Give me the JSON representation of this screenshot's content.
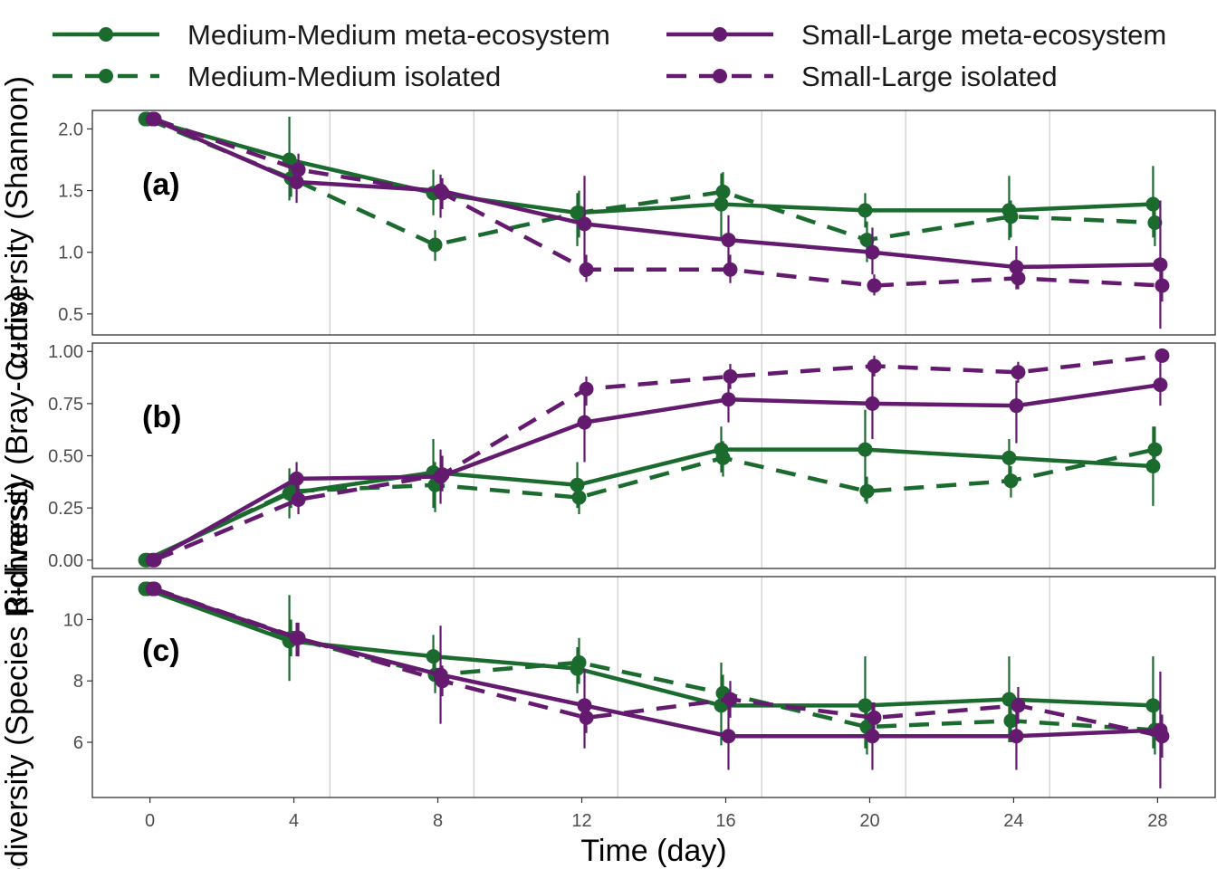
{
  "chart_data": {
    "type": "line",
    "xlabel": "Time (day)",
    "x_ticks": [
      0,
      4,
      8,
      12,
      16,
      20,
      24,
      28
    ],
    "xlim": [
      -1.6,
      29.6
    ],
    "sampling_gridlines": [
      5,
      9,
      13,
      17,
      21,
      25
    ],
    "legend_position": "top",
    "colors": {
      "medium_medium": "#1b6b2f",
      "small_large": "#641a6e"
    },
    "legend": [
      {
        "id": "mm_meta",
        "label": "Medium-Medium meta-ecosystem",
        "color": "#1b6b2f",
        "dash": "solid"
      },
      {
        "id": "mm_iso",
        "label": "Medium-Medium isolated",
        "color": "#1b6b2f",
        "dash": "dashed"
      },
      {
        "id": "sl_meta",
        "label": "Small-Large meta-ecosystem",
        "color": "#641a6e",
        "dash": "solid"
      },
      {
        "id": "sl_iso",
        "label": "Small-Large isolated",
        "color": "#641a6e",
        "dash": "dashed"
      }
    ],
    "panels": [
      {
        "label": "(a)",
        "ylabel": "α-diversity (Shannon)",
        "ylim": [
          0.33,
          2.15
        ],
        "y_ticks": [
          0.5,
          1.0,
          1.5,
          2.0
        ],
        "y_tick_labels": [
          "0.5",
          "1.0",
          "1.5",
          "2.0"
        ],
        "series": [
          {
            "id": "mm_meta",
            "x": [
              0,
              4,
              8,
              12,
              16,
              20,
              24,
              28
            ],
            "y": [
              2.08,
              1.75,
              1.48,
              1.32,
              1.39,
              1.34,
              1.34,
              1.39
            ],
            "lo": [
              2.08,
              1.42,
              1.3,
              1.05,
              1.12,
              1.2,
              1.1,
              1.12
            ],
            "hi": [
              2.08,
              2.1,
              1.67,
              1.48,
              1.64,
              1.48,
              1.62,
              1.7
            ]
          },
          {
            "id": "mm_iso",
            "x": [
              0,
              4,
              8,
              12,
              16,
              20,
              24,
              28
            ],
            "y": [
              2.08,
              1.6,
              1.06,
              1.32,
              1.49,
              1.1,
              1.29,
              1.24
            ],
            "lo": [
              2.08,
              1.45,
              0.93,
              1.12,
              1.35,
              0.92,
              1.12,
              1.05
            ],
            "hi": [
              2.08,
              1.75,
              1.18,
              1.5,
              1.65,
              1.25,
              1.42,
              1.4
            ]
          },
          {
            "id": "sl_meta",
            "x": [
              0,
              4,
              8,
              12,
              16,
              20,
              24,
              28
            ],
            "y": [
              2.08,
              1.57,
              1.5,
              1.23,
              1.1,
              1.0,
              0.88,
              0.9
            ],
            "lo": [
              2.08,
              1.4,
              1.28,
              0.8,
              0.9,
              0.82,
              0.7,
              0.38
            ],
            "hi": [
              2.08,
              1.7,
              1.63,
              1.62,
              1.3,
              1.2,
              1.05,
              1.42
            ]
          },
          {
            "id": "sl_iso",
            "x": [
              0,
              4,
              8,
              12,
              16,
              20,
              24,
              28
            ],
            "y": [
              2.08,
              1.67,
              1.48,
              0.86,
              0.86,
              0.73,
              0.79,
              0.73
            ],
            "lo": [
              2.08,
              1.52,
              1.35,
              0.76,
              0.75,
              0.65,
              0.7,
              0.6
            ],
            "hi": [
              2.08,
              1.8,
              1.6,
              0.98,
              0.98,
              0.82,
              0.88,
              0.86
            ]
          }
        ]
      },
      {
        "label": "(b)",
        "ylabel": "β-diversity (Bray-Curtis)",
        "ylim": [
          -0.04,
          1.04
        ],
        "y_ticks": [
          0.0,
          0.25,
          0.5,
          0.75,
          1.0
        ],
        "y_tick_labels": [
          "0.00",
          "0.25",
          "0.50",
          "0.75",
          "1.00"
        ],
        "series": [
          {
            "id": "mm_meta",
            "x": [
              0,
              4,
              8,
              12,
              16,
              20,
              24,
              28
            ],
            "y": [
              0.0,
              0.32,
              0.42,
              0.36,
              0.53,
              0.53,
              0.49,
              0.45
            ],
            "lo": [
              0.0,
              0.2,
              0.25,
              0.25,
              0.42,
              0.28,
              0.4,
              0.26
            ],
            "hi": [
              0.0,
              0.44,
              0.58,
              0.47,
              0.64,
              0.72,
              0.58,
              0.64
            ]
          },
          {
            "id": "mm_iso",
            "x": [
              0,
              4,
              8,
              12,
              16,
              20,
              24,
              28
            ],
            "y": [
              0.0,
              0.33,
              0.36,
              0.3,
              0.49,
              0.33,
              0.38,
              0.53
            ],
            "lo": [
              0.0,
              0.25,
              0.23,
              0.22,
              0.4,
              0.27,
              0.3,
              0.45
            ],
            "hi": [
              0.0,
              0.4,
              0.47,
              0.38,
              0.57,
              0.4,
              0.45,
              0.64
            ]
          },
          {
            "id": "sl_meta",
            "x": [
              0,
              4,
              8,
              12,
              16,
              20,
              24,
              28
            ],
            "y": [
              0.0,
              0.39,
              0.4,
              0.66,
              0.77,
              0.75,
              0.74,
              0.84
            ],
            "lo": [
              0.0,
              0.3,
              0.27,
              0.47,
              0.66,
              0.58,
              0.56,
              0.74
            ],
            "hi": [
              0.0,
              0.47,
              0.53,
              0.8,
              0.87,
              0.9,
              0.86,
              0.95
            ]
          },
          {
            "id": "sl_iso",
            "x": [
              0,
              4,
              8,
              12,
              16,
              20,
              24,
              28
            ],
            "y": [
              0.0,
              0.29,
              0.41,
              0.82,
              0.88,
              0.93,
              0.9,
              0.98
            ],
            "lo": [
              0.0,
              0.22,
              0.33,
              0.74,
              0.82,
              0.88,
              0.85,
              0.96
            ],
            "hi": [
              0.0,
              0.36,
              0.5,
              0.88,
              0.94,
              0.98,
              0.95,
              1.0
            ]
          }
        ]
      },
      {
        "label": "(c)",
        "ylabel": "α-diversity (Species Richness)",
        "ylim": [
          4.2,
          11.4
        ],
        "y_ticks": [
          6,
          8,
          10
        ],
        "y_tick_labels": [
          "6",
          "8",
          "10"
        ],
        "series": [
          {
            "id": "mm_meta",
            "x": [
              0,
              4,
              8,
              12,
              16,
              20,
              24,
              28
            ],
            "y": [
              11.0,
              9.3,
              8.8,
              8.4,
              7.2,
              7.2,
              7.4,
              7.2
            ],
            "lo": [
              11.0,
              8.0,
              8.2,
              7.6,
              5.9,
              5.8,
              6.0,
              5.8
            ],
            "hi": [
              11.0,
              10.8,
              9.5,
              9.1,
              8.6,
              8.8,
              8.8,
              8.8
            ]
          },
          {
            "id": "mm_iso",
            "x": [
              0,
              4,
              8,
              12,
              16,
              20,
              24,
              28
            ],
            "y": [
              11.0,
              9.4,
              8.2,
              8.6,
              7.6,
              6.5,
              6.7,
              6.4
            ],
            "lo": [
              11.0,
              8.8,
              7.6,
              7.9,
              7.0,
              5.6,
              6.0,
              5.6
            ],
            "hi": [
              11.0,
              10.0,
              8.9,
              9.4,
              8.2,
              7.3,
              7.5,
              7.2
            ]
          },
          {
            "id": "sl_meta",
            "x": [
              0,
              4,
              8,
              12,
              16,
              20,
              24,
              28
            ],
            "y": [
              11.0,
              9.4,
              8.2,
              7.2,
              6.2,
              6.2,
              6.2,
              6.4
            ],
            "lo": [
              11.0,
              8.8,
              6.6,
              5.8,
              5.1,
              5.1,
              5.1,
              4.5
            ],
            "hi": [
              11.0,
              9.9,
              9.8,
              8.4,
              7.4,
              7.3,
              7.3,
              8.3
            ]
          },
          {
            "id": "sl_iso",
            "x": [
              0,
              4,
              8,
              12,
              16,
              20,
              24,
              28
            ],
            "y": [
              11.0,
              9.4,
              8.0,
              6.8,
              7.4,
              6.8,
              7.2,
              6.2
            ],
            "lo": [
              11.0,
              8.8,
              7.5,
              6.3,
              6.8,
              6.3,
              6.6,
              5.5
            ],
            "hi": [
              11.0,
              9.9,
              8.5,
              7.3,
              8.0,
              7.3,
              7.8,
              6.9
            ]
          }
        ]
      }
    ]
  }
}
